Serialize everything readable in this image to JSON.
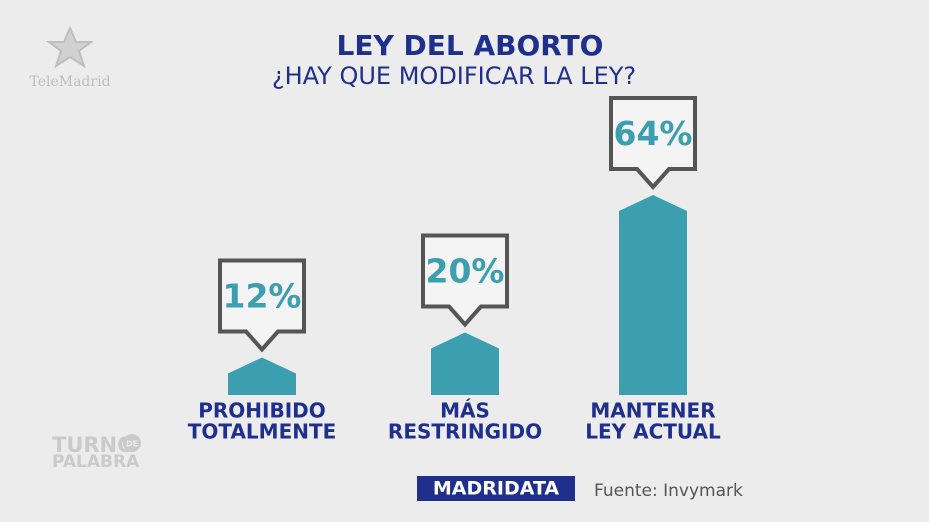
{
  "channel": "TeleMadrid",
  "show": {
    "top": "TURNO",
    "middle": "DE",
    "bottom": "PALABRA"
  },
  "chart_data": {
    "type": "bar",
    "title": "LEY DEL ABORTO",
    "subtitle": "¿HAY QUE MODIFICAR LA LEY?",
    "categories": [
      [
        "PROHIBIDO",
        "TOTALMENTE"
      ],
      [
        "MÁS",
        "RESTRINGIDO"
      ],
      [
        "MANTENER",
        "LEY ACTUAL"
      ]
    ],
    "values": [
      12,
      20,
      64
    ],
    "value_labels": [
      "12%",
      "20%",
      "64%"
    ],
    "color": "#3b9fb0",
    "brand": "MADRIDATA",
    "source": "Fuente: Invymark"
  }
}
